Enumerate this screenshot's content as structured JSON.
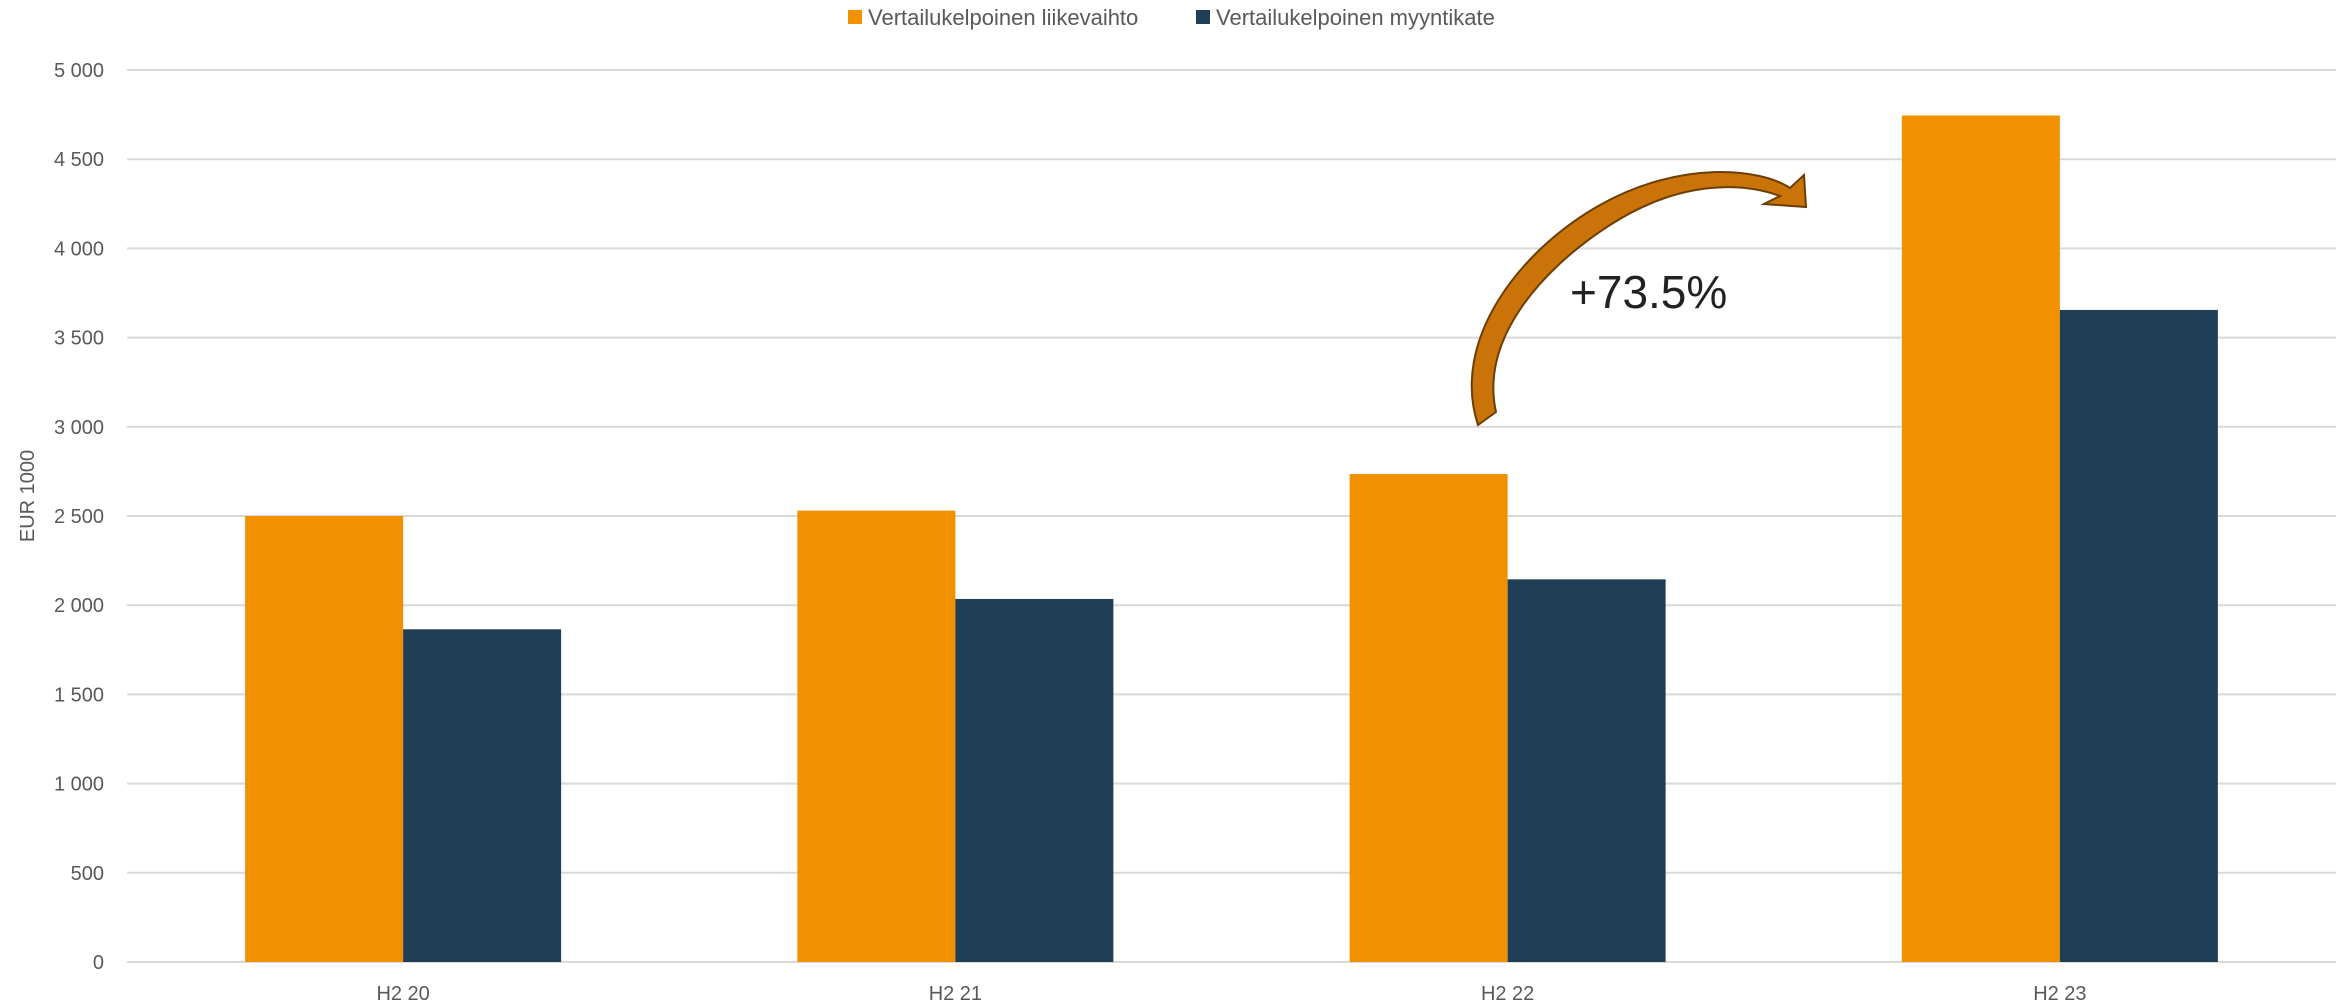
{
  "chart_data": {
    "type": "bar",
    "title": "",
    "xlabel": "",
    "ylabel": "EUR 1000",
    "ylim": [
      0,
      5000
    ],
    "yticks": [
      0,
      500,
      1000,
      1500,
      2000,
      2500,
      3000,
      3500,
      4000,
      4500,
      5000
    ],
    "ytick_labels": [
      "0",
      "500",
      "1 000",
      "1 500",
      "2 000",
      "2 500",
      "3 000",
      "3 500",
      "4 000",
      "4 500",
      "5 000"
    ],
    "categories": [
      "H2 20",
      "H2 21",
      "H2 22",
      "H2 23"
    ],
    "series": [
      {
        "name": "Vertailukelpoinen liikevaihto",
        "color": "#F29100",
        "values": [
          2500,
          2530,
          2735,
          4745
        ]
      },
      {
        "name": "Vertailukelpoinen myyntikate",
        "color": "#203F57",
        "values": [
          1865,
          2035,
          2145,
          3655
        ]
      }
    ],
    "grid": true,
    "legend_position": "top-center",
    "annotation": {
      "text": "+73.5%",
      "from_category": "H2 22",
      "to_category": "H2 23",
      "arrow_color": "#C97308"
    }
  }
}
